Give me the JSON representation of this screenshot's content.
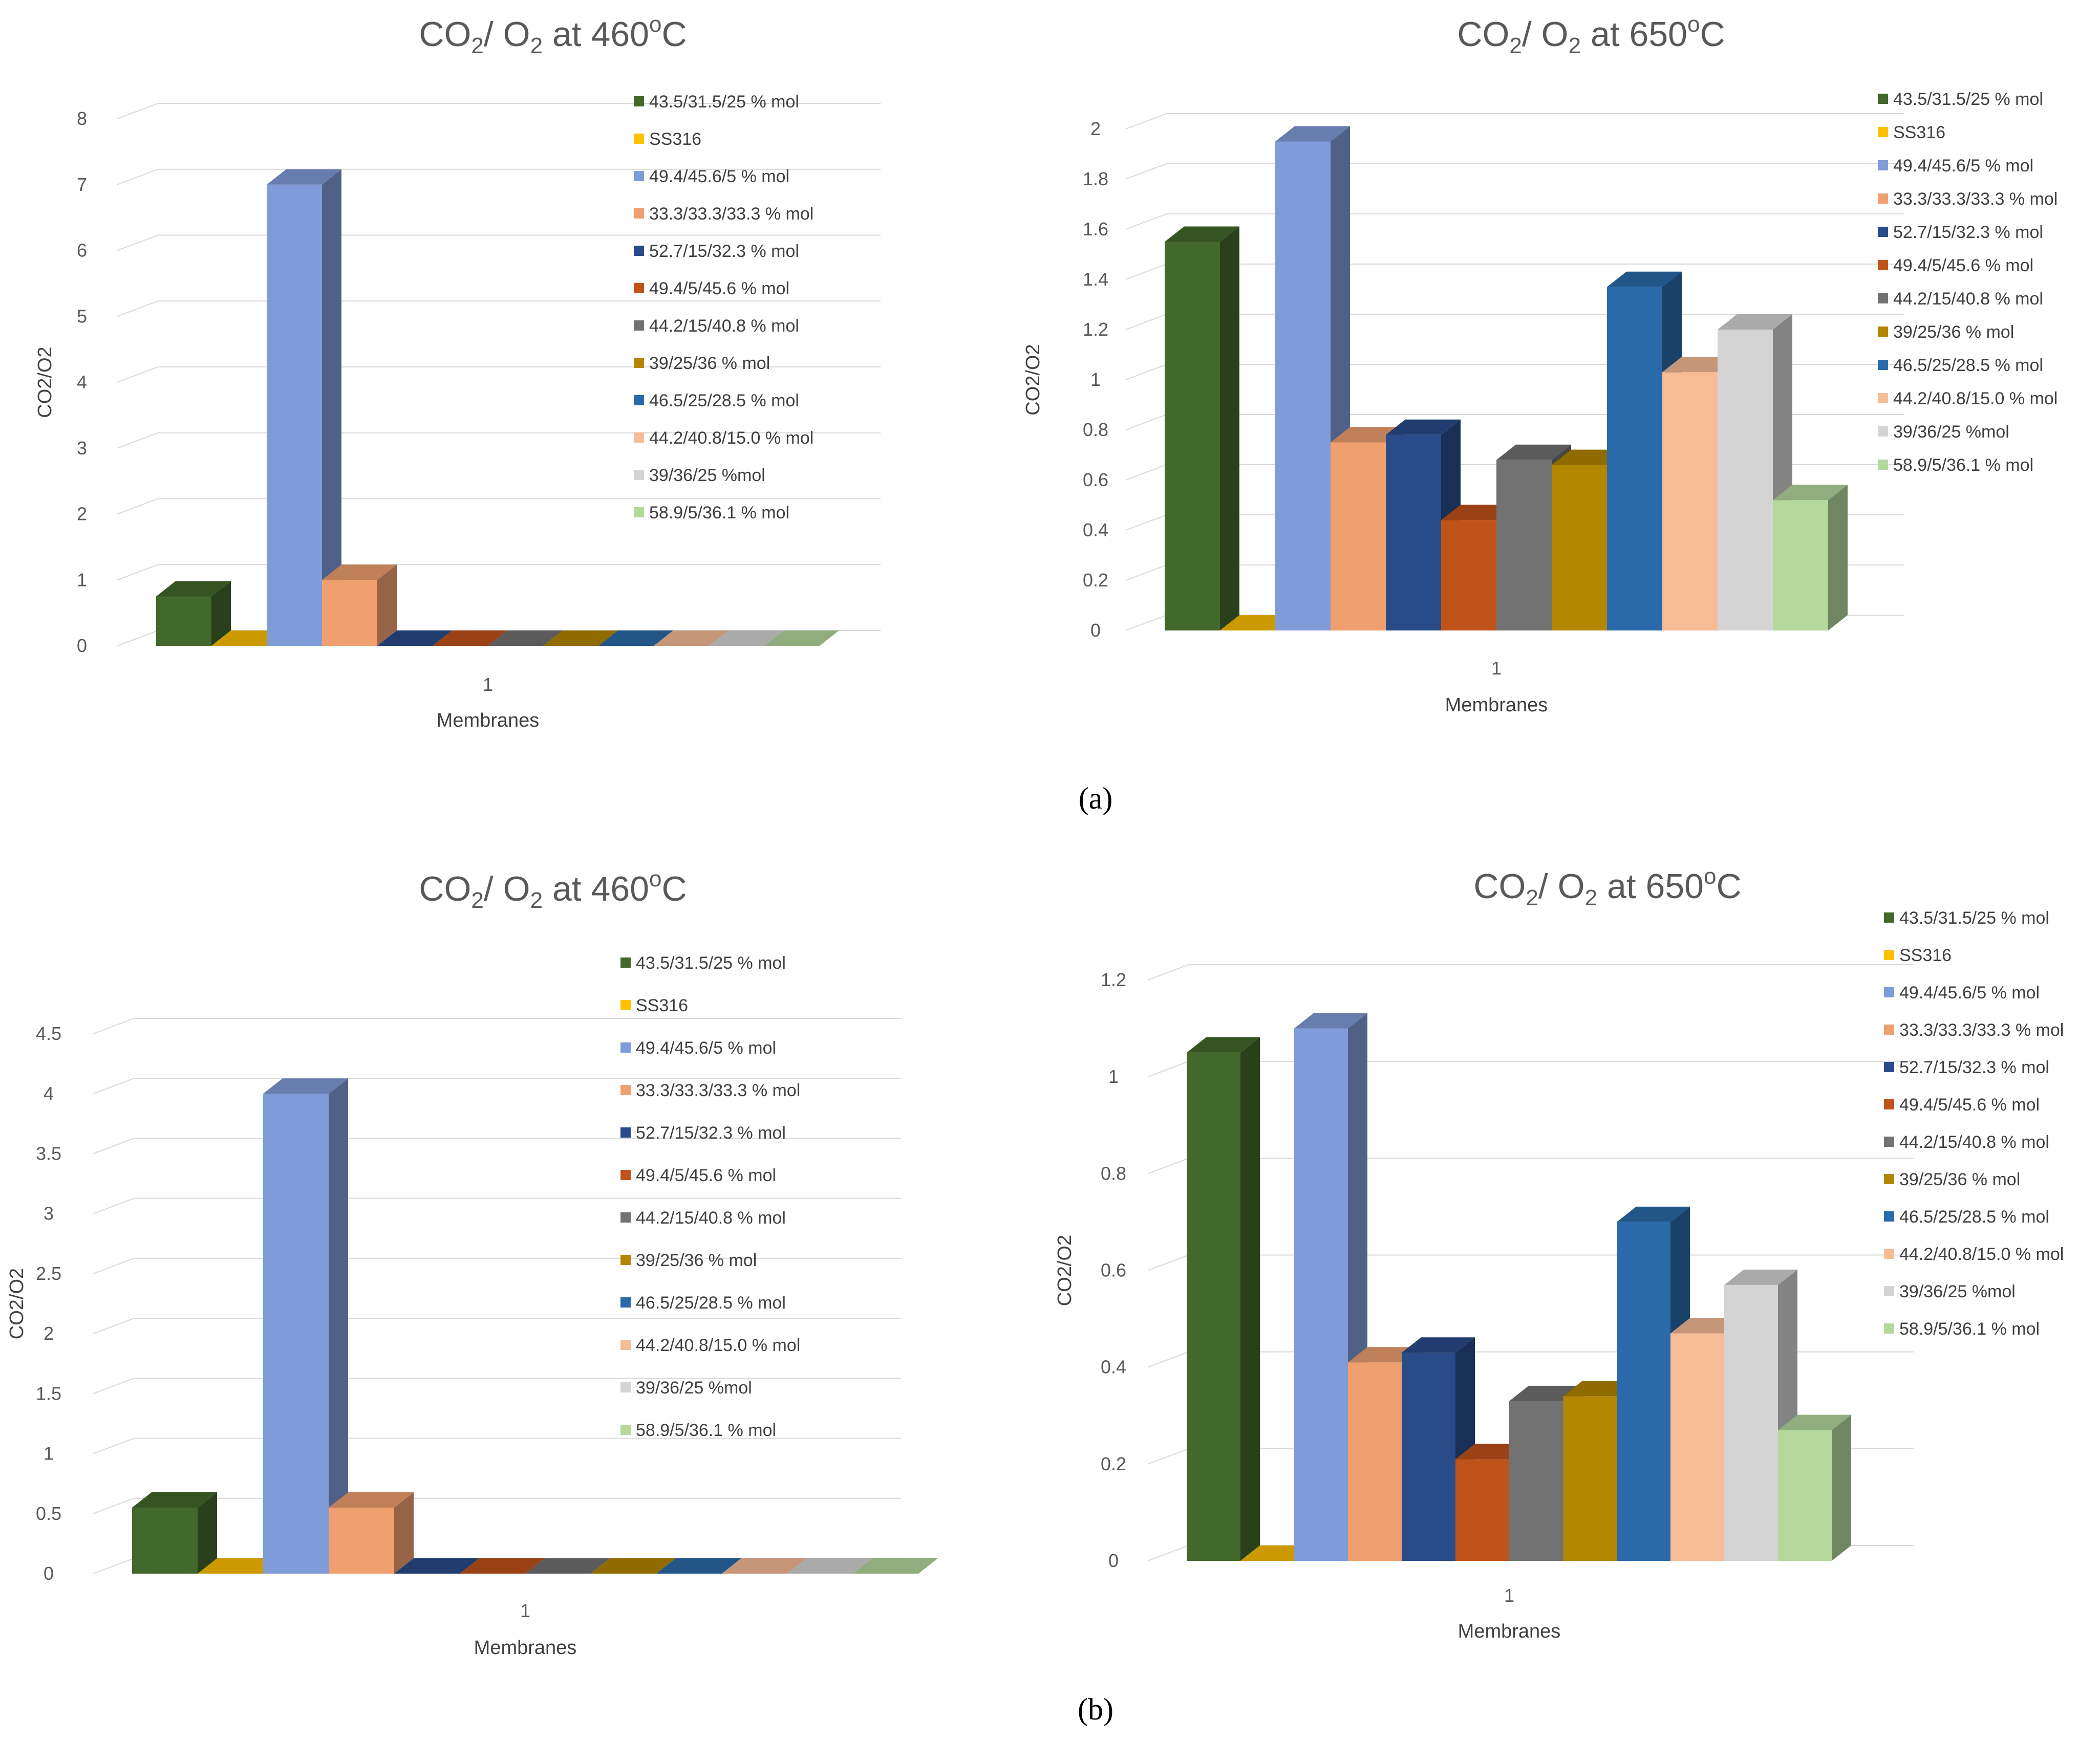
{
  "legend": [
    {
      "label": "43.5/31.5/25 % mol",
      "color": "#43682b"
    },
    {
      "label": "SS316",
      "color": "#ffc000"
    },
    {
      "label": "49.4/45.6/5 % mol",
      "color": "#7f9cd9"
    },
    {
      "label": "33.3/33.3/33.3 % mol",
      "color": "#f0a070"
    },
    {
      "label": "52.7/15/32.3 % mol",
      "color": "#294b8a"
    },
    {
      "label": "49.4/5/45.6 % mol",
      "color": "#c0531a"
    },
    {
      "label": "44.2/15/40.8 % mol",
      "color": "#727272"
    },
    {
      "label": "39/25/36 % mol",
      "color": "#b38600"
    },
    {
      "label": "46.5/25/28.5 % mol",
      "color": "#2a6aaa"
    },
    {
      "label": "44.2/40.8/15.0  % mol",
      "color": "#f6bc96"
    },
    {
      "label": "39/36/25  %mol",
      "color": "#d4d4d4"
    },
    {
      "label": "58.9/5/36.1 % mol",
      "color": "#b5d89c"
    }
  ],
  "panel_labels": {
    "a": "(a)",
    "b": "(b)"
  },
  "chart_data": [
    {
      "id": "a1",
      "type": "bar",
      "title_parts": [
        "CO",
        "2",
        "/ O",
        "2",
        " at 460",
        "o",
        "C"
      ],
      "xlabel": "Membranes",
      "ylabel": "CO2/O2",
      "category": "1",
      "ylim": [
        0,
        8
      ],
      "ticks": [
        "0",
        "1",
        "2",
        "3",
        "4",
        "5",
        "6",
        "7",
        "8"
      ],
      "tick_values": [
        0,
        1,
        2,
        3,
        4,
        5,
        6,
        7,
        8
      ],
      "values": [
        0.75,
        0,
        7.0,
        1.0,
        0,
        0,
        0,
        0,
        0,
        0,
        0,
        0
      ]
    },
    {
      "id": "a2",
      "type": "bar",
      "title_parts": [
        "CO",
        "2",
        "/ O",
        "2",
        " at 650",
        "o",
        "C"
      ],
      "xlabel": "Membranes",
      "ylabel": "CO2/O2",
      "category": "1",
      "ylim": [
        0,
        2
      ],
      "ticks": [
        "0",
        "0.2",
        "0.4",
        "0.6",
        "0.8",
        "1",
        "1.2",
        "1.4",
        "1.6",
        "1.8",
        "2"
      ],
      "tick_values": [
        0,
        0.2,
        0.4,
        0.6,
        0.8,
        1,
        1.2,
        1.4,
        1.6,
        1.8,
        2
      ],
      "values": [
        1.55,
        0,
        1.95,
        0.75,
        0.78,
        0.44,
        0.68,
        0.66,
        1.37,
        1.03,
        1.2,
        0.52
      ]
    },
    {
      "id": "b1",
      "type": "bar",
      "title_parts": [
        "CO",
        "2",
        "/ O",
        "2",
        " at 460",
        "o",
        "C"
      ],
      "xlabel": "Membranes",
      "ylabel": "CO2/O2",
      "category": "1",
      "ylim": [
        0,
        4.5
      ],
      "ticks": [
        "0",
        "0.5",
        "1",
        "1.5",
        "2",
        "2.5",
        "3",
        "3.5",
        "4",
        "4.5"
      ],
      "tick_values": [
        0,
        0.5,
        1,
        1.5,
        2,
        2.5,
        3,
        3.5,
        4,
        4.5
      ],
      "values": [
        0.55,
        0,
        4.0,
        0.55,
        0,
        0,
        0,
        0,
        0,
        0,
        0,
        0
      ]
    },
    {
      "id": "b2",
      "type": "bar",
      "title_parts": [
        "CO",
        "2",
        "/ O",
        "2",
        " at 650",
        "o",
        "C"
      ],
      "xlabel": "Membranes",
      "ylabel": "CO2/O2",
      "category": "1",
      "ylim": [
        0,
        1.2
      ],
      "ticks": [
        "0",
        "0.2",
        "0.4",
        "0.6",
        "0.8",
        "1",
        "1.2"
      ],
      "tick_values": [
        0,
        0.2,
        0.4,
        0.6,
        0.8,
        1,
        1.2
      ],
      "values": [
        1.05,
        0,
        1.1,
        0.41,
        0.43,
        0.21,
        0.33,
        0.34,
        0.7,
        0.47,
        0.57,
        0.27
      ]
    }
  ]
}
